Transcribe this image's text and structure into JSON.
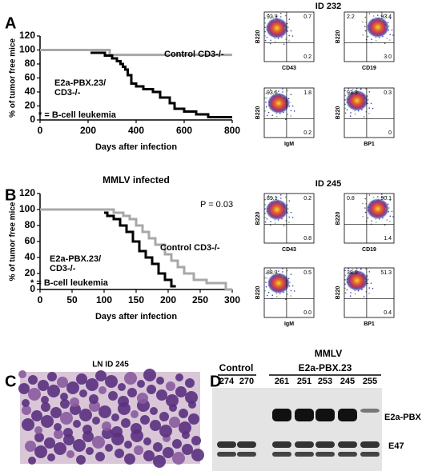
{
  "chart_data": [
    {
      "type": "line",
      "panel": "A",
      "xlabel": "Days after infection",
      "ylabel": "% of tumor free mice",
      "xlim": [
        0,
        800
      ],
      "xticks": [
        0,
        200,
        400,
        600,
        800
      ],
      "ylim": [
        0,
        120
      ],
      "yticks": [
        0,
        20,
        40,
        60,
        80,
        100,
        120
      ],
      "note": "* = B-cell leukemia",
      "series": [
        {
          "name": "Control CD3-/-",
          "color": "#a8a8a8",
          "x": [
            0,
            290,
            290,
            800
          ],
          "values": [
            100,
            100,
            93,
            93
          ]
        },
        {
          "name": "E2a-PBX.23/ CD3-/-",
          "color": "#000000",
          "x": [
            210,
            270,
            270,
            300,
            300,
            320,
            320,
            335,
            335,
            345,
            345,
            355,
            355,
            365,
            365,
            380,
            380,
            400,
            400,
            430,
            430,
            470,
            470,
            500,
            500,
            540,
            540,
            560,
            560,
            600,
            600,
            650,
            650,
            700,
            700,
            800
          ],
          "values": [
            96,
            96,
            92,
            92,
            88,
            88,
            84,
            84,
            80,
            80,
            76,
            76,
            72,
            72,
            64,
            64,
            52,
            52,
            48,
            48,
            44,
            44,
            40,
            40,
            32,
            32,
            24,
            24,
            16,
            16,
            12,
            12,
            8,
            8,
            4,
            4
          ]
        }
      ]
    },
    {
      "type": "line",
      "panel": "B",
      "title": "MMLV infected",
      "xlabel": "Days after infection",
      "ylabel": "% of tumor free mice",
      "xlim": [
        0,
        300
      ],
      "xticks": [
        0,
        50,
        100,
        150,
        200,
        250,
        300
      ],
      "ylim": [
        0,
        120
      ],
      "yticks": [
        0,
        20,
        40,
        60,
        80,
        100,
        120
      ],
      "note": "* = B-cell leukemia",
      "annotation": "P = 0.03",
      "series": [
        {
          "name": "Control CD3-/-",
          "color": "#a8a8a8",
          "x": [
            0,
            115,
            115,
            130,
            130,
            140,
            140,
            150,
            150,
            160,
            160,
            170,
            170,
            180,
            180,
            195,
            195,
            205,
            205,
            215,
            215,
            225,
            225,
            240,
            240,
            260,
            260,
            290,
            290,
            300
          ],
          "values": [
            100,
            100,
            96,
            96,
            92,
            92,
            88,
            88,
            80,
            80,
            72,
            72,
            64,
            64,
            56,
            56,
            44,
            44,
            36,
            36,
            28,
            28,
            20,
            20,
            12,
            12,
            8,
            8,
            0,
            0
          ]
        },
        {
          "name": "E2a-PBX.23/ CD3-/-",
          "color": "#000000",
          "x": [
            100,
            105,
            105,
            115,
            115,
            125,
            125,
            135,
            135,
            145,
            145,
            155,
            155,
            165,
            165,
            175,
            175,
            185,
            185,
            195,
            195,
            205,
            205,
            212
          ],
          "values": [
            96,
            96,
            92,
            92,
            88,
            88,
            80,
            80,
            72,
            72,
            60,
            60,
            48,
            48,
            40,
            40,
            32,
            32,
            20,
            20,
            12,
            12,
            4,
            4
          ]
        }
      ]
    }
  ],
  "flow": [
    {
      "id": "ID 232",
      "plots": [
        {
          "xlabel": "CD43",
          "ylabel": "B220",
          "quadrants": [
            "92.9",
            "0.7",
            "0.2"
          ]
        },
        {
          "xlabel": "CD19",
          "ylabel": "B220",
          "quadrants": [
            "2.2",
            "93.4",
            "3.0"
          ]
        },
        {
          "xlabel": "IgM",
          "ylabel": "B220",
          "quadrants": [
            "93.6",
            "1.8",
            "0.2"
          ]
        },
        {
          "xlabel": "BP1",
          "ylabel": "B220",
          "quadrants": [
            "93.3",
            "0.3",
            "0"
          ]
        }
      ]
    },
    {
      "id": "ID 245",
      "plots": [
        {
          "xlabel": "CD43",
          "ylabel": "B220",
          "quadrants": [
            "89.1",
            "0.2",
            "0.8"
          ]
        },
        {
          "xlabel": "CD19",
          "ylabel": "B220",
          "quadrants": [
            "0.8",
            "90.1",
            "1.4"
          ]
        },
        {
          "xlabel": "IgM",
          "ylabel": "B220",
          "quadrants": [
            "88.3",
            "0.5",
            "0.0"
          ]
        },
        {
          "xlabel": "BP1",
          "ylabel": "B220",
          "quadrants": [
            "38.0",
            "51.3",
            "0.4"
          ]
        }
      ]
    }
  ],
  "histology": {
    "panel": "C",
    "title": "LN ID 245"
  },
  "blot": {
    "panel": "D",
    "title": "MMLV",
    "groups": [
      "Control",
      "E2a-PBX.23"
    ],
    "lanes": [
      "274",
      "270",
      "261",
      "251",
      "253",
      "245",
      "255"
    ],
    "bands": [
      "E2a-PBX",
      "E47"
    ]
  }
}
